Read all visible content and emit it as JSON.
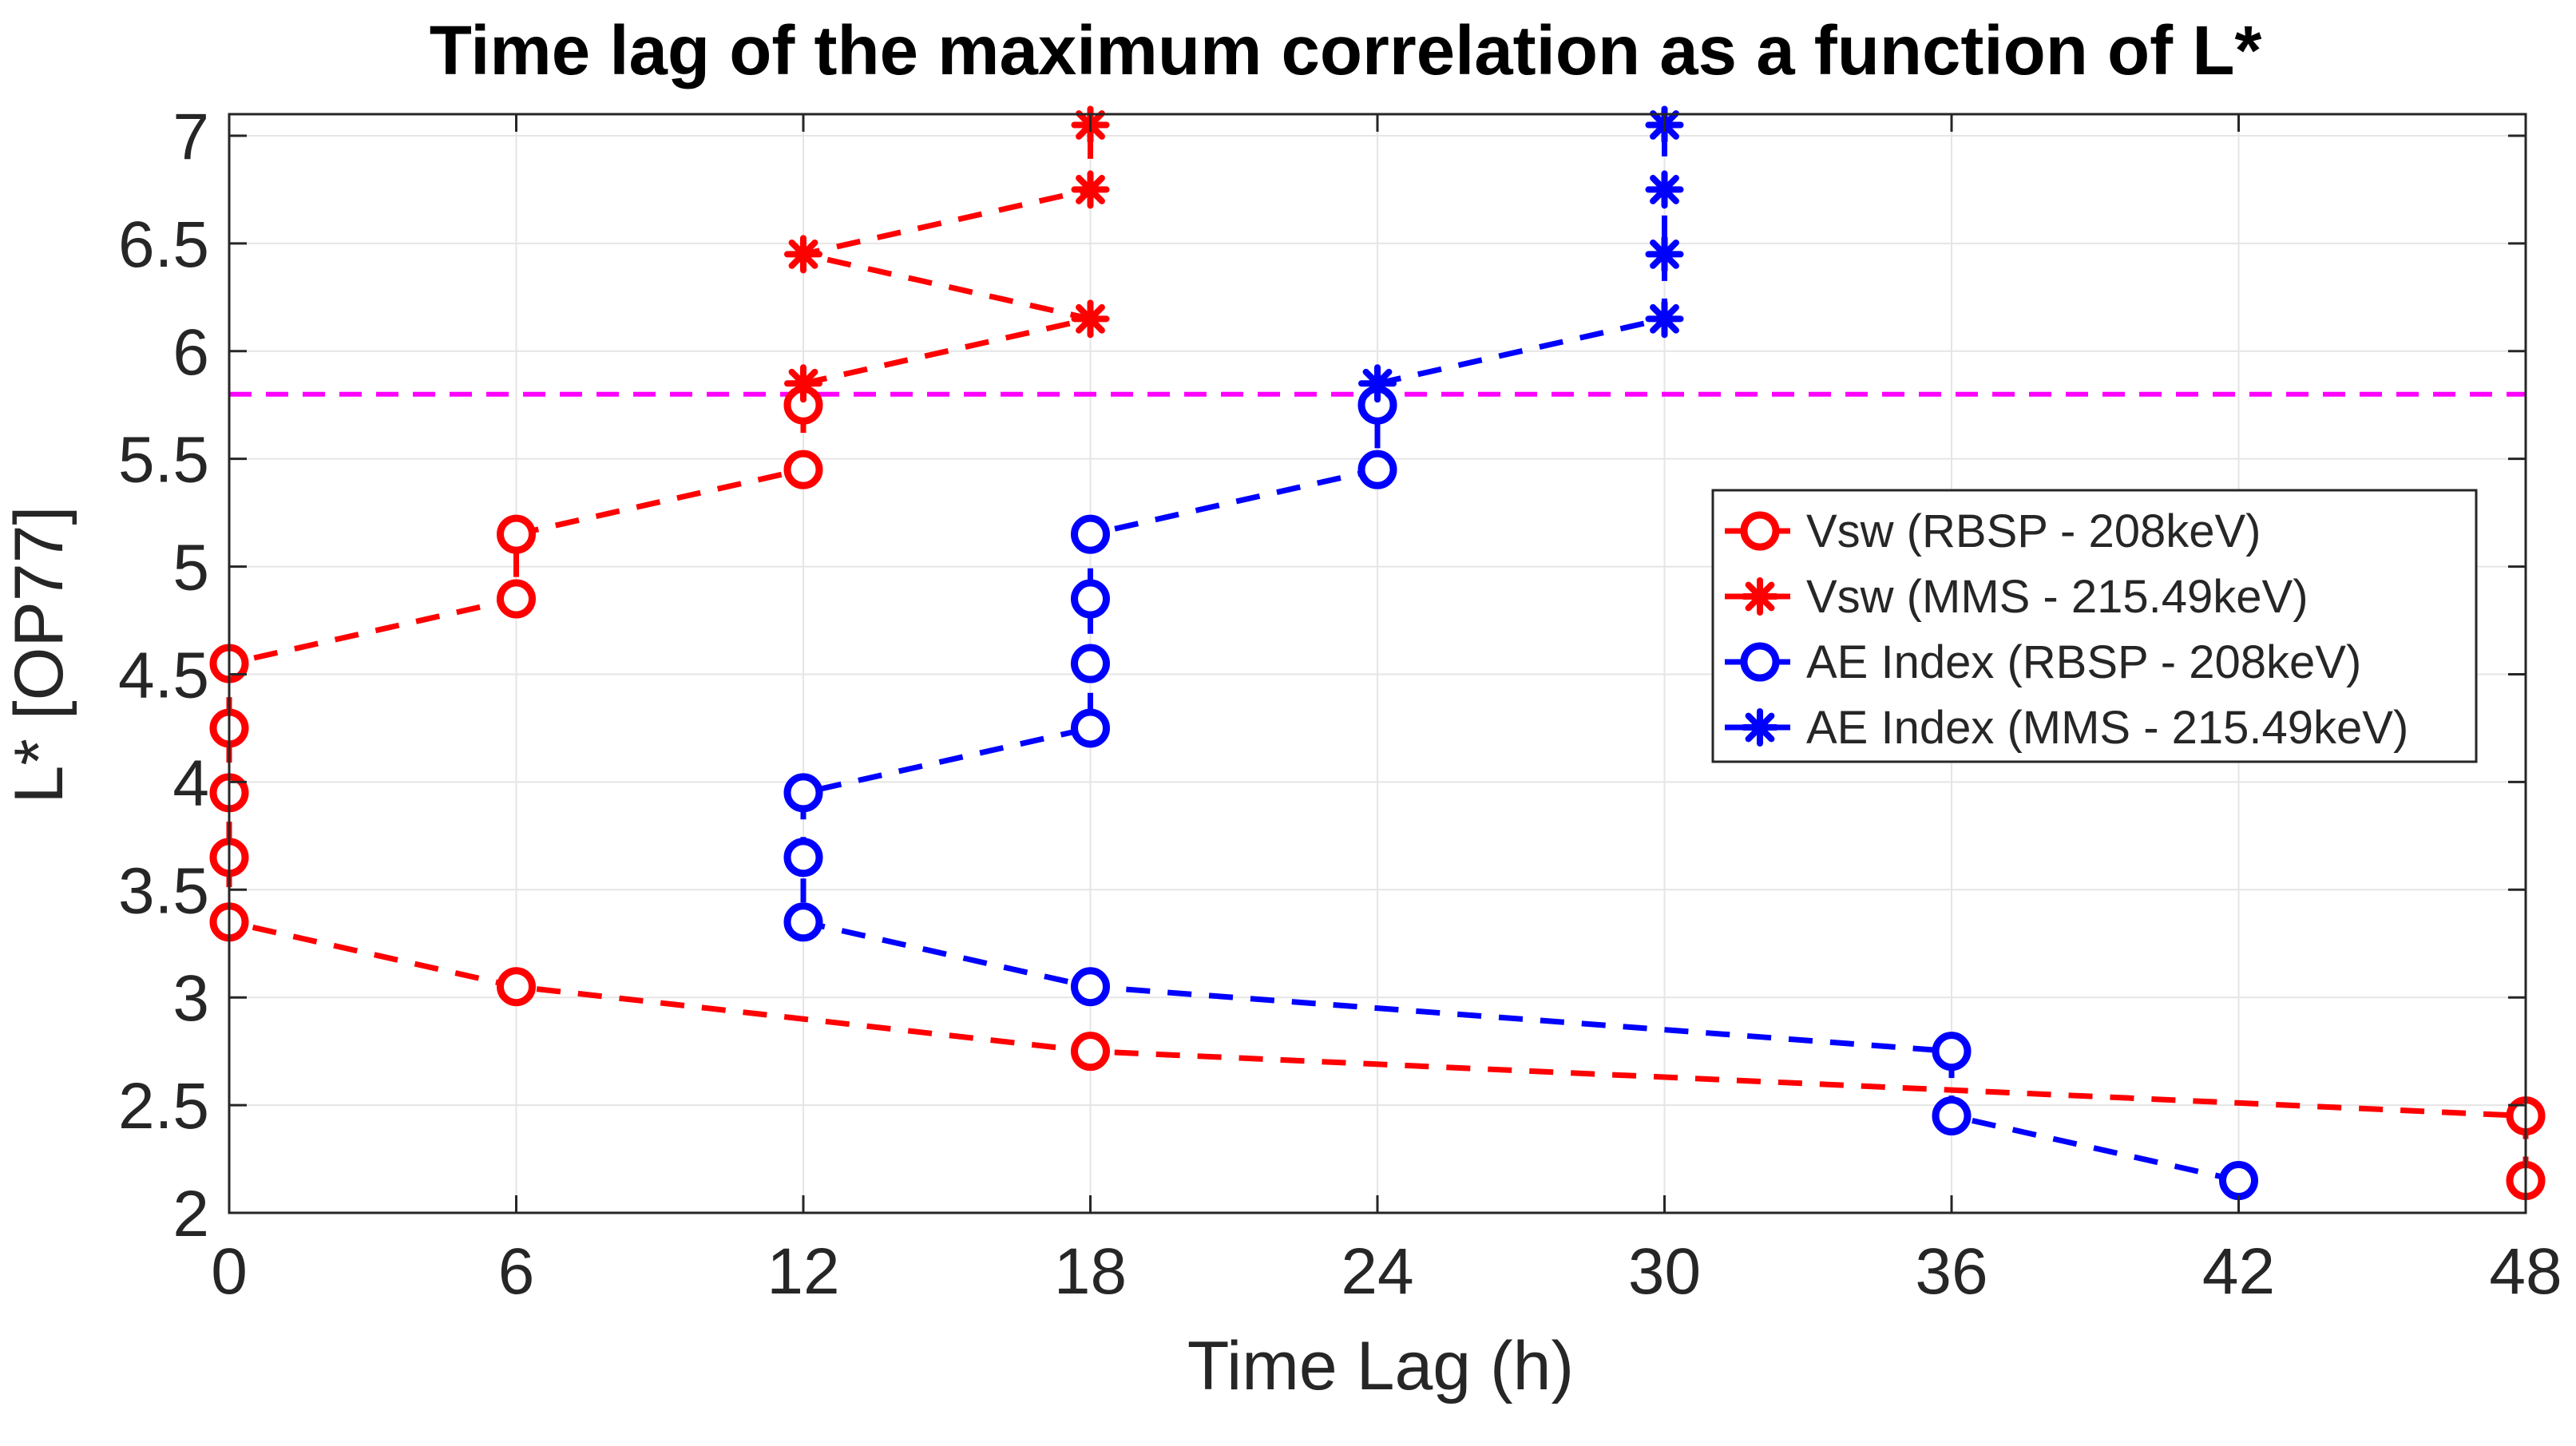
{
  "chart_data": {
    "type": "line",
    "title": "Time lag of the maximum correlation as a function of L*",
    "xlabel": "Time Lag (h)",
    "ylabel": "L* [OP77]",
    "xlim": [
      0,
      48
    ],
    "ylim": [
      2,
      7.1
    ],
    "xticks": [
      0,
      6,
      12,
      18,
      24,
      30,
      36,
      42,
      48
    ],
    "yticks": [
      2,
      2.5,
      3,
      3.5,
      4,
      4.5,
      5,
      5.5,
      6,
      6.5,
      7
    ],
    "xtick_labels": [
      "0",
      "6",
      "12",
      "18",
      "24",
      "30",
      "36",
      "42",
      "48"
    ],
    "ytick_labels": [
      "2",
      "2.5",
      "3",
      "3.5",
      "4",
      "4.5",
      "5",
      "5.5",
      "6",
      "6.5",
      "7"
    ],
    "grid": true,
    "legend_position": "right",
    "threshold_line": {
      "y": 5.8,
      "color": "#ff00ff"
    },
    "series": [
      {
        "name": "Vsw (RBSP - 208keV)",
        "color": "#ff0000",
        "marker": "circle",
        "x": [
          48,
          48,
          18,
          6,
          0,
          0,
          0,
          0,
          0,
          6,
          6,
          12,
          12
        ],
        "y": [
          2.15,
          2.45,
          2.75,
          3.05,
          3.35,
          3.65,
          3.95,
          4.25,
          4.55,
          4.85,
          5.15,
          5.45,
          5.75
        ]
      },
      {
        "name": "Vsw (MMS - 215.49keV)",
        "color": "#ff0000",
        "marker": "asterisk",
        "x": [
          12,
          18,
          12,
          18,
          18
        ],
        "y": [
          5.85,
          6.15,
          6.45,
          6.75,
          7.05
        ]
      },
      {
        "name": "AE Index (RBSP - 208keV)",
        "color": "#0000ff",
        "marker": "circle",
        "x": [
          42,
          36,
          36,
          18,
          12,
          12,
          12,
          18,
          18,
          18,
          18,
          24,
          24
        ],
        "y": [
          2.15,
          2.45,
          2.75,
          3.05,
          3.35,
          3.65,
          3.95,
          4.25,
          4.55,
          4.85,
          5.15,
          5.45,
          5.75
        ]
      },
      {
        "name": "AE Index (MMS - 215.49keV)",
        "color": "#0000ff",
        "marker": "asterisk",
        "x": [
          24,
          30,
          30,
          30,
          30
        ],
        "y": [
          5.85,
          6.15,
          6.45,
          6.75,
          7.05
        ]
      }
    ]
  }
}
